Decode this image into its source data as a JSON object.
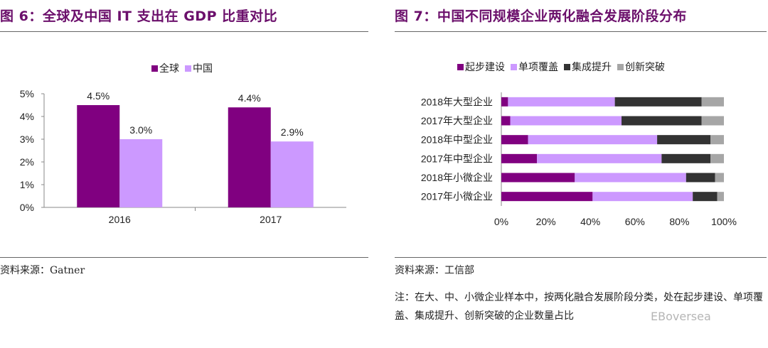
{
  "left": {
    "title": "图 6：全球及中国 IT 支出在 GDP 比重对比",
    "source": "资料来源：Gatner"
  },
  "right": {
    "title": "图 7：中国不同规模企业两化融合发展阶段分布",
    "source": "资料来源：工信部",
    "note": "注：在大、中、小微企业样本中，按两化融合发展阶段分类，处在起步建设、单项覆盖、集成提升、创新突破的企业数量占比",
    "watermark": "EBoversea"
  },
  "colors": {
    "purple_dark": "#800080",
    "purple_light": "#cc99ff",
    "dark_gray": "#333333",
    "light_gray": "#a6a6a6",
    "title": "#6b0f6b"
  },
  "chart_data": [
    {
      "type": "bar",
      "categories": [
        "2016",
        "2017"
      ],
      "series": [
        {
          "name": "全球",
          "values": [
            4.5,
            4.4
          ],
          "labels": [
            "4.5%",
            "4.4%"
          ],
          "color": "#800080"
        },
        {
          "name": "中国",
          "values": [
            3.0,
            2.9
          ],
          "labels": [
            "3.0%",
            "2.9%"
          ],
          "color": "#cc99ff"
        }
      ],
      "ylim": [
        0,
        5
      ],
      "yticks": [
        "0%",
        "1%",
        "2%",
        "3%",
        "4%",
        "5%"
      ],
      "legend": "top-center",
      "grid": false
    },
    {
      "type": "bar",
      "orientation": "horizontal",
      "stacked": true,
      "categories": [
        "2018年大型企业",
        "2017年大型企业",
        "2018年中型企业",
        "2017年中型企业",
        "2018年小微企业",
        "2017年小微企业"
      ],
      "series": [
        {
          "name": "起步建设",
          "values": [
            3,
            4,
            12,
            16,
            33,
            41
          ],
          "color": "#800080"
        },
        {
          "name": "单项覆盖",
          "values": [
            48,
            50,
            58,
            56,
            50,
            45
          ],
          "color": "#cc99ff"
        },
        {
          "name": "集成提升",
          "values": [
            39,
            36,
            24,
            22,
            13,
            11
          ],
          "color": "#333333"
        },
        {
          "name": "创新突破",
          "values": [
            10,
            10,
            6,
            6,
            4,
            3
          ],
          "color": "#a6a6a6"
        }
      ],
      "xlim": [
        0,
        100
      ],
      "xticks": [
        "0%",
        "20%",
        "40%",
        "60%",
        "80%",
        "100%"
      ],
      "legend": "top-center",
      "grid": false
    }
  ]
}
